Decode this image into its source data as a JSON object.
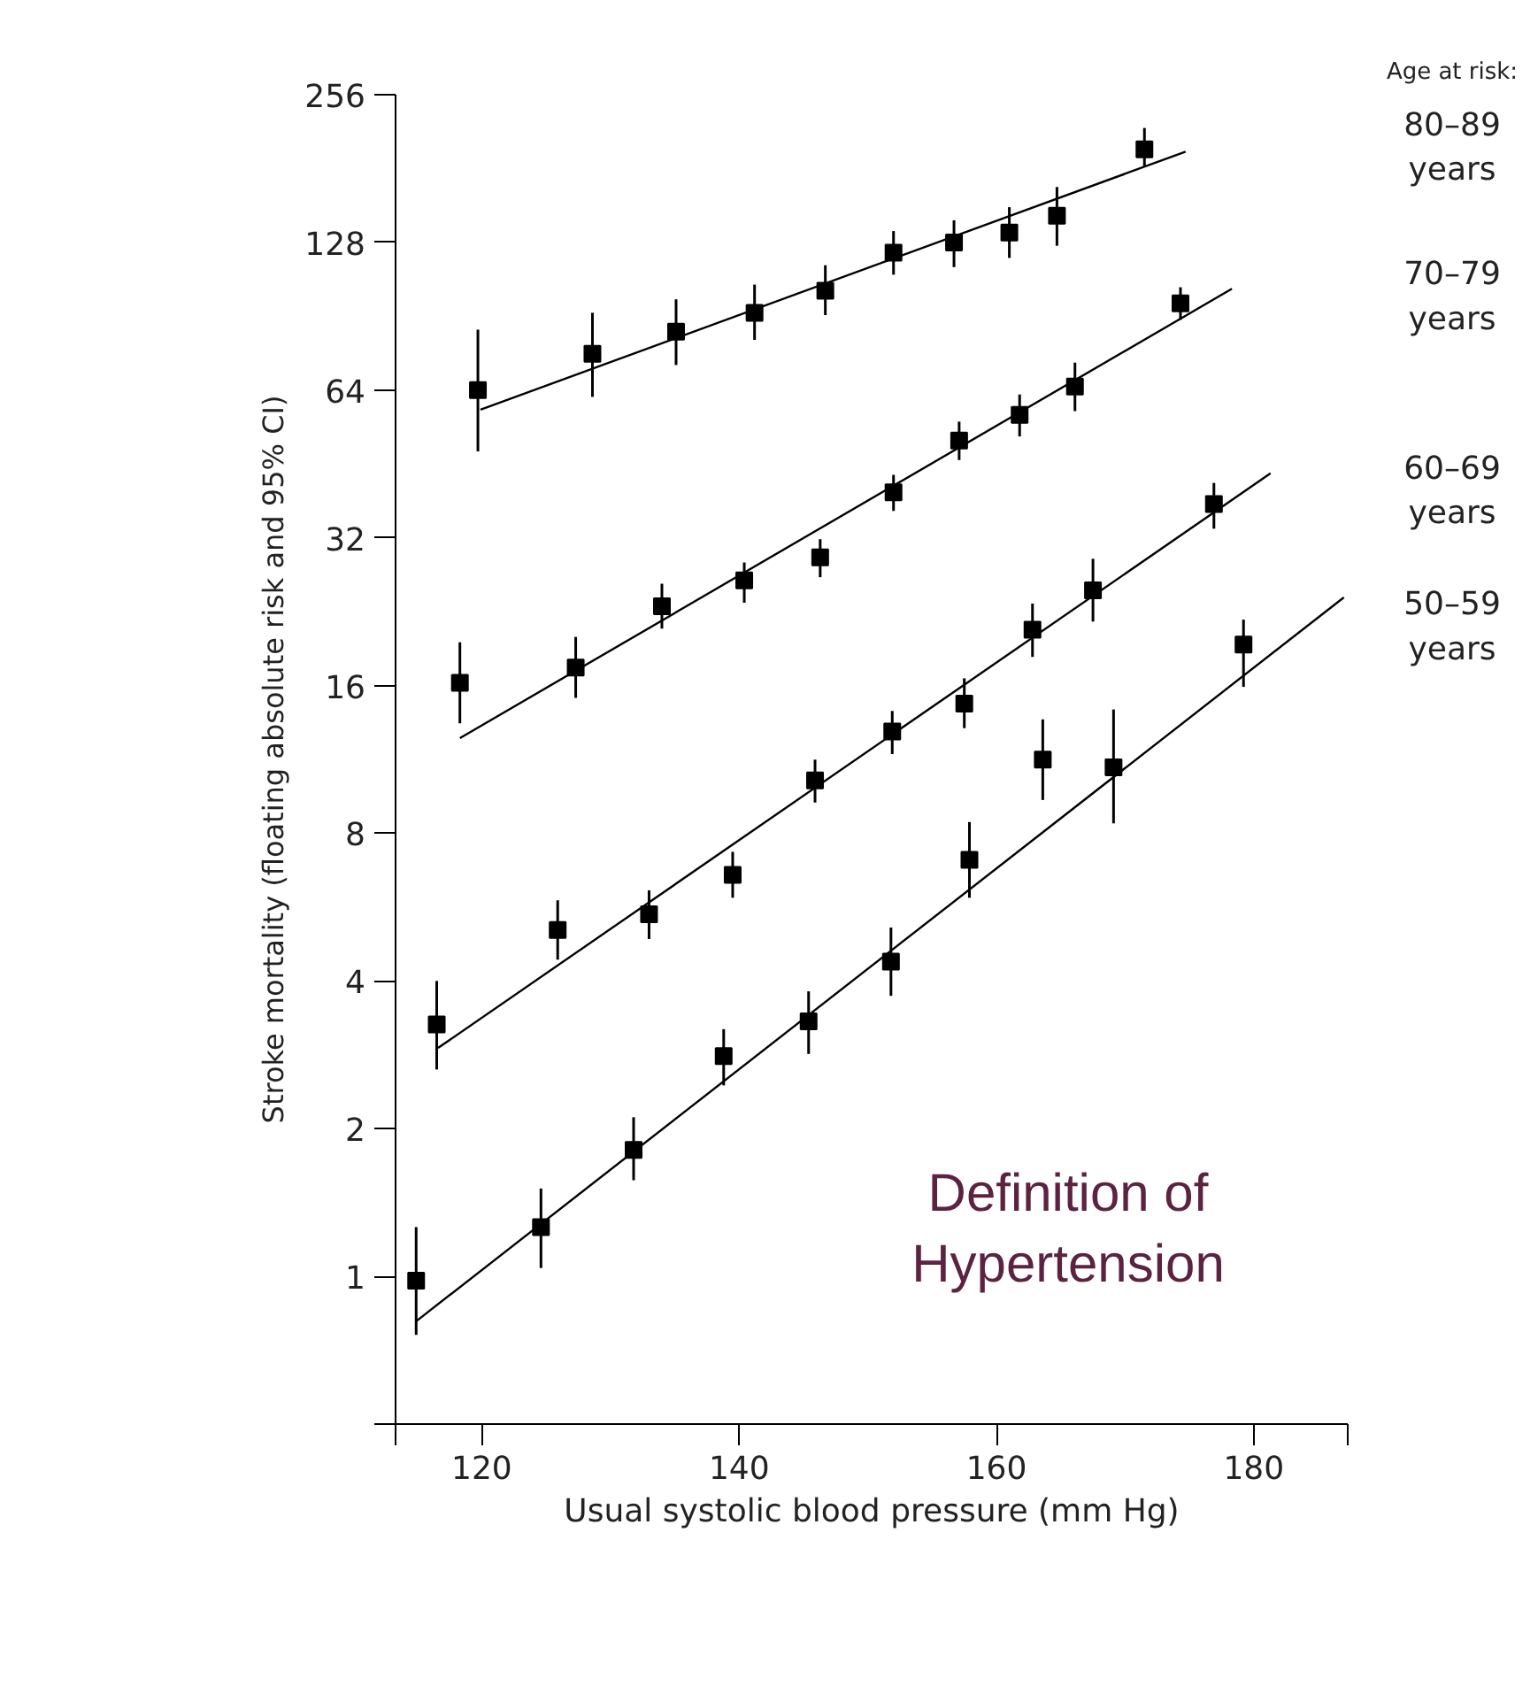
{
  "chart_data": {
    "type": "scatter",
    "xlabel": "Usual systolic blood pressure (mm Hg)",
    "ylabel": "Stroke mortality (floating absolute risk and 95% CI)",
    "legend_title": "Age at risk:",
    "annotations": [
      "Definition of Hypertension"
    ],
    "log": "y",
    "marker": "square",
    "grid": false,
    "xlim": [
      113.3,
      187.3
    ],
    "xticks": [
      {
        "value": 113.3,
        "label": null
      },
      120,
      140,
      160,
      180,
      {
        "value": 187.3,
        "label": null
      }
    ],
    "ylim": [
      0.5,
      256
    ],
    "yticks": [
      {
        "value": 0.5,
        "label": null
      },
      1,
      2,
      4,
      8,
      16,
      32,
      64,
      128,
      256
    ],
    "series": [
      {
        "name": "80–89 years",
        "color": "#000000",
        "x": [
          119.7,
          128.6,
          135.1,
          141.2,
          146.7,
          152.0,
          156.7,
          161.0,
          164.7,
          171.5
        ],
        "values": [
          64,
          75.9,
          84.2,
          92.0,
          102,
          122,
          128,
          134,
          145,
          198
        ],
        "errors": [
          [
            48,
            85
          ],
          [
            62,
            92
          ],
          [
            72,
            98
          ],
          [
            81,
            105
          ],
          [
            91,
            115
          ],
          [
            110,
            135
          ],
          [
            114,
            142
          ],
          [
            119,
            151
          ],
          [
            126,
            166
          ],
          [
            183,
            219
          ]
        ]
      },
      {
        "type": "line",
        "marker": "none",
        "color": "#000000",
        "x": [
          119.9,
          174.7
        ],
        "values": [
          58.4,
          196
        ]
      },
      {
        "name": "70–79 years",
        "color": "#000000",
        "x": [
          118.3,
          127.3,
          134.0,
          140.4,
          146.3,
          152.0,
          157.1,
          161.8,
          166.1,
          174.3
        ],
        "values": [
          16.2,
          17.4,
          23.2,
          26.2,
          29.2,
          39.6,
          50.5,
          57.0,
          65.1,
          96.2
        ],
        "errors": [
          [
            13.4,
            19.6
          ],
          [
            15.1,
            20.1
          ],
          [
            20.9,
            25.8
          ],
          [
            23.6,
            28.5
          ],
          [
            26.6,
            31.8
          ],
          [
            36.3,
            43
          ],
          [
            46.1,
            55.2
          ],
          [
            51.5,
            62.7
          ],
          [
            58,
            72.8
          ],
          [
            89,
            103.7
          ]
        ]
      },
      {
        "type": "line",
        "marker": "none",
        "color": "#000000",
        "x": [
          118.3,
          178.3
        ],
        "values": [
          12.5,
          103
        ]
      },
      {
        "name": "60–69 years",
        "color": "#000000",
        "x": [
          116.5,
          125.9,
          133.0,
          139.5,
          145.9,
          151.9,
          157.5,
          162.8,
          167.5,
          176.9
        ],
        "values": [
          3.26,
          5.08,
          5.47,
          6.58,
          10.25,
          12.9,
          14.7,
          20.8,
          25.0,
          37.5
        ],
        "errors": [
          [
            2.64,
            4.0
          ],
          [
            4.42,
            5.84
          ],
          [
            4.87,
            6.12
          ],
          [
            5.91,
            7.33
          ],
          [
            9.24,
            11.3
          ],
          [
            11.6,
            14.2
          ],
          [
            13.1,
            16.55
          ],
          [
            18.3,
            23.5
          ],
          [
            21.6,
            29
          ],
          [
            33.4,
            41.4
          ]
        ]
      },
      {
        "type": "line",
        "marker": "none",
        "color": "#000000",
        "x": [
          116.6,
          181.3
        ],
        "values": [
          2.92,
          43.3
        ]
      },
      {
        "name": "50–59 years",
        "color": "#000000",
        "x": [
          114.9,
          124.6,
          131.8,
          138.8,
          145.4,
          151.8,
          157.9,
          163.6,
          169.1,
          179.2
        ],
        "values": [
          0.98,
          1.26,
          1.81,
          2.81,
          3.31,
          4.38,
          7.06,
          11.3,
          10.9,
          19.4
        ],
        "errors": [
          [
            0.76,
            1.26
          ],
          [
            1.04,
            1.51
          ],
          [
            1.57,
            2.11
          ],
          [
            2.45,
            3.19
          ],
          [
            2.84,
            3.81
          ],
          [
            3.73,
            5.14
          ],
          [
            5.91,
            8.43
          ],
          [
            9.35,
            13.65
          ],
          [
            8.38,
            14.3
          ],
          [
            15.9,
            21.8
          ]
        ]
      },
      {
        "type": "line",
        "marker": "none",
        "color": "#000000",
        "x": [
          114.9,
          187.0
        ],
        "values": [
          0.81,
          24.2
        ]
      }
    ]
  }
}
